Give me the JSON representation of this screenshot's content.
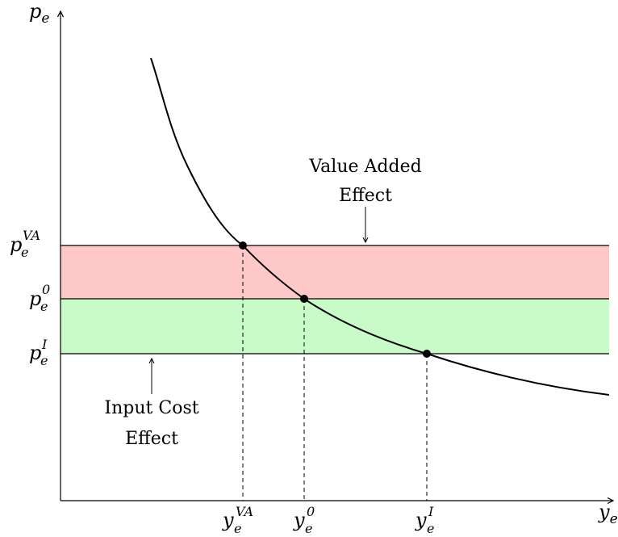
{
  "axes": {
    "y_label": {
      "base": "p",
      "sub": "e"
    },
    "x_label": {
      "base": "y",
      "sub": "e"
    }
  },
  "price_levels": {
    "va": {
      "base": "p",
      "sub": "e",
      "sup": "VA"
    },
    "zero": {
      "base": "p",
      "sub": "e",
      "sup": "0"
    },
    "input": {
      "base": "p",
      "sub": "e",
      "sup": "I"
    }
  },
  "quantity_levels": {
    "va": {
      "base": "y",
      "sub": "e",
      "sup": "VA"
    },
    "zero": {
      "base": "y",
      "sub": "e",
      "sup": "0"
    },
    "input": {
      "base": "y",
      "sub": "e",
      "sup": "I"
    }
  },
  "annotations": {
    "value_added": [
      "Value Added",
      "Effect"
    ],
    "input_cost": [
      "Input Cost",
      "Effect"
    ]
  },
  "colors": {
    "value_added_band": "#ffc8c8",
    "input_cost_band": "#c8fbc8",
    "line": "#000000",
    "dot": "#000000"
  }
}
